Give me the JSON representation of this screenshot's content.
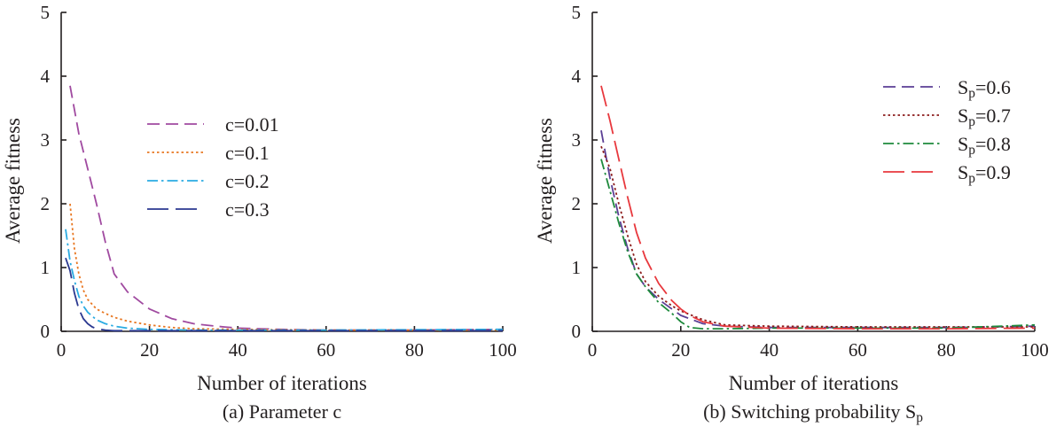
{
  "chart_data": [
    {
      "type": "line",
      "caption": "(a) Parameter c",
      "xlabel": "Number of iterations",
      "ylabel": "Average fitness",
      "xlim": [
        0,
        100
      ],
      "ylim": [
        0,
        5
      ],
      "xticks": [
        "0",
        "20",
        "40",
        "60",
        "80",
        "100"
      ],
      "yticks": [
        "0",
        "1",
        "2",
        "3",
        "4",
        "5"
      ],
      "grid": false,
      "legend_position": "center",
      "series": [
        {
          "name": "c=0.01",
          "color": "#a04aa0",
          "dash": "dashed",
          "x": [
            2,
            4,
            6,
            8,
            10,
            12,
            15,
            20,
            25,
            30,
            35,
            40,
            50,
            60,
            80,
            100
          ],
          "y": [
            3.85,
            3.1,
            2.55,
            2.0,
            1.4,
            0.9,
            0.62,
            0.35,
            0.2,
            0.12,
            0.08,
            0.05,
            0.03,
            0.02,
            0.02,
            0.03
          ]
        },
        {
          "name": "c=0.1",
          "color": "#e87722",
          "dash": "dotted",
          "x": [
            2,
            3,
            4,
            5,
            6,
            8,
            10,
            12,
            15,
            20,
            25,
            30,
            40,
            60,
            100
          ],
          "y": [
            2.0,
            1.3,
            0.9,
            0.65,
            0.5,
            0.35,
            0.28,
            0.22,
            0.16,
            0.1,
            0.06,
            0.04,
            0.03,
            0.02,
            0.02
          ]
        },
        {
          "name": "c=0.2",
          "color": "#2aabe2",
          "dash": "dashdot",
          "x": [
            1,
            2,
            3,
            4,
            5,
            6,
            8,
            10,
            12,
            15,
            20,
            30,
            40,
            60,
            100
          ],
          "y": [
            1.6,
            1.1,
            0.8,
            0.55,
            0.4,
            0.3,
            0.18,
            0.12,
            0.08,
            0.05,
            0.03,
            0.02,
            0.02,
            0.02,
            0.03
          ]
        },
        {
          "name": "c=0.3",
          "color": "#2b3990",
          "dash": "longdash",
          "x": [
            1,
            2,
            3,
            4,
            5,
            6,
            7,
            8,
            10,
            12,
            15,
            20,
            40,
            100
          ],
          "y": [
            1.15,
            0.95,
            0.6,
            0.35,
            0.2,
            0.12,
            0.07,
            0.04,
            0.02,
            0.01,
            0.01,
            0.01,
            0.01,
            0.01
          ]
        }
      ]
    },
    {
      "type": "line",
      "caption": "(b) Switching probability S",
      "caption_sub": "p",
      "xlabel": "Number of iterations",
      "ylabel": "Average fitness",
      "xlim": [
        0,
        100
      ],
      "ylim": [
        0,
        5
      ],
      "xticks": [
        "0",
        "20",
        "40",
        "60",
        "80",
        "100"
      ],
      "yticks": [
        "0",
        "1",
        "2",
        "3",
        "4",
        "5"
      ],
      "grid": false,
      "legend_position": "top-right",
      "series": [
        {
          "name": "S",
          "name_sub": "p",
          "name_suffix": "=0.6",
          "color": "#5b3f95",
          "dash": "dashed",
          "x": [
            2,
            4,
            6,
            8,
            10,
            12,
            15,
            18,
            20,
            25,
            30,
            40,
            60,
            80,
            100
          ],
          "y": [
            3.15,
            2.4,
            1.8,
            1.3,
            0.9,
            0.7,
            0.5,
            0.35,
            0.25,
            0.12,
            0.08,
            0.06,
            0.06,
            0.06,
            0.08
          ]
        },
        {
          "name": "S",
          "name_sub": "p",
          "name_suffix": "=0.7",
          "color": "#8b1a1a",
          "dash": "dotted",
          "x": [
            2,
            4,
            6,
            8,
            10,
            12,
            15,
            18,
            20,
            25,
            30,
            40,
            60,
            80,
            100
          ],
          "y": [
            2.9,
            2.55,
            2.0,
            1.5,
            1.05,
            0.78,
            0.55,
            0.4,
            0.32,
            0.18,
            0.1,
            0.08,
            0.07,
            0.07,
            0.07
          ]
        },
        {
          "name": "S",
          "name_sub": "p",
          "name_suffix": "=0.8",
          "color": "#1e8a3c",
          "dash": "dashdot",
          "x": [
            2,
            4,
            6,
            8,
            10,
            12,
            15,
            18,
            20,
            22,
            25,
            30,
            40,
            60,
            80,
            100
          ],
          "y": [
            2.7,
            2.2,
            1.7,
            1.25,
            0.9,
            0.7,
            0.45,
            0.28,
            0.15,
            0.06,
            0.04,
            0.04,
            0.05,
            0.05,
            0.05,
            0.1
          ]
        },
        {
          "name": "S",
          "name_sub": "p",
          "name_suffix": "=0.9",
          "color": "#e8383d",
          "dash": "longdash",
          "x": [
            2,
            4,
            6,
            8,
            10,
            12,
            15,
            18,
            20,
            22,
            25,
            30,
            40,
            60,
            80,
            100
          ],
          "y": [
            3.85,
            3.3,
            2.7,
            2.1,
            1.55,
            1.15,
            0.75,
            0.48,
            0.35,
            0.25,
            0.15,
            0.08,
            0.05,
            0.04,
            0.04,
            0.05
          ]
        }
      ]
    }
  ]
}
